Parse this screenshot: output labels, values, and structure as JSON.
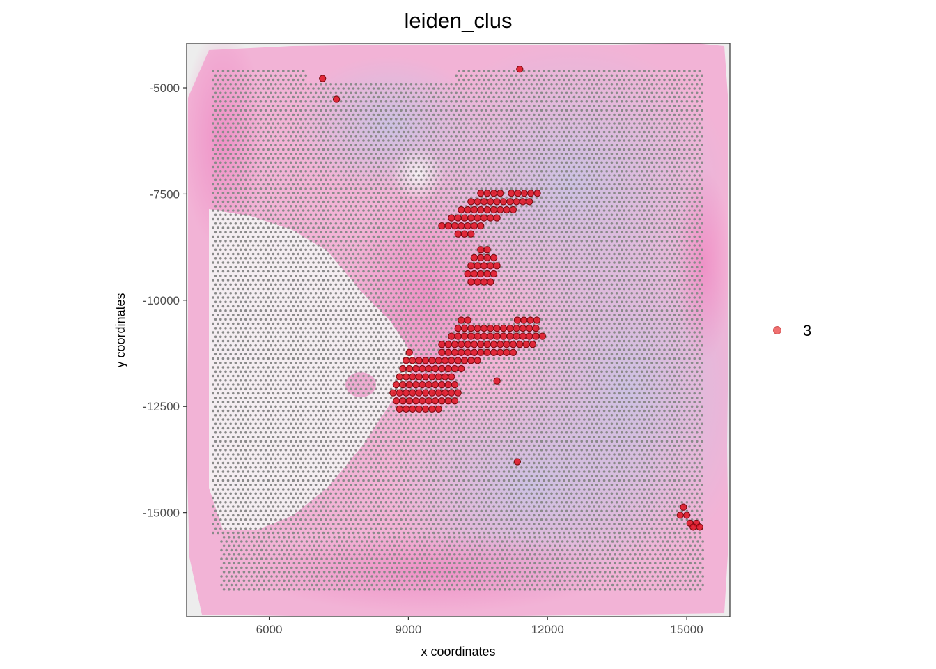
{
  "chart_data": {
    "type": "scatter",
    "title": "leiden_clus",
    "xlabel": "x coordinates",
    "ylabel": "y coordinates",
    "xlim": [
      4220,
      15930
    ],
    "ylim": [
      -17450,
      -3950
    ],
    "x_ticks": [
      6000,
      9000,
      12000,
      15000
    ],
    "y_ticks": [
      -5000,
      -7500,
      -10000,
      -12500,
      -15000
    ],
    "y_tick_labels": [
      "-5000",
      "-7500",
      "-10000",
      "-12500",
      "-15000"
    ],
    "x_tick_labels": [
      "6000",
      "9000",
      "12000",
      "15000"
    ],
    "grid": false,
    "background": "tissue image (H&E stained section)",
    "colors": {
      "highlight": "#e01020",
      "highlight_edge": "#7a0a10",
      "legend_point": "#f07070",
      "background_spot": "#8a8a8a",
      "tissue_pink": "#f2a6cf",
      "tissue_lilac": "#cbbfe0"
    },
    "legend": {
      "position": "right",
      "entries": [
        {
          "label": "3",
          "color": "#f07070"
        }
      ]
    },
    "series": [
      {
        "name": "3",
        "role": "highlighted cluster",
        "points": [
          [
            7150,
            -4780
          ],
          [
            11400,
            -4560
          ],
          [
            7450,
            -5270
          ],
          [
            11220,
            -7480
          ],
          [
            11360,
            -7480
          ],
          [
            11500,
            -7480
          ],
          [
            11640,
            -7480
          ],
          [
            11780,
            -7480
          ],
          [
            10560,
            -7480
          ],
          [
            10700,
            -7480
          ],
          [
            10840,
            -7480
          ],
          [
            10980,
            -7480
          ],
          [
            10350,
            -7680
          ],
          [
            10490,
            -7680
          ],
          [
            10630,
            -7680
          ],
          [
            10770,
            -7680
          ],
          [
            10910,
            -7680
          ],
          [
            11050,
            -7680
          ],
          [
            11190,
            -7680
          ],
          [
            11330,
            -7680
          ],
          [
            11470,
            -7680
          ],
          [
            11610,
            -7680
          ],
          [
            10140,
            -7870
          ],
          [
            10280,
            -7870
          ],
          [
            10420,
            -7870
          ],
          [
            10560,
            -7870
          ],
          [
            10700,
            -7870
          ],
          [
            10840,
            -7870
          ],
          [
            10980,
            -7870
          ],
          [
            11120,
            -7870
          ],
          [
            11260,
            -7870
          ],
          [
            9930,
            -8060
          ],
          [
            10070,
            -8060
          ],
          [
            10210,
            -8060
          ],
          [
            10350,
            -8060
          ],
          [
            10490,
            -8060
          ],
          [
            10630,
            -8060
          ],
          [
            10770,
            -8060
          ],
          [
            10910,
            -8060
          ],
          [
            9720,
            -8250
          ],
          [
            9860,
            -8250
          ],
          [
            10000,
            -8250
          ],
          [
            10140,
            -8250
          ],
          [
            10280,
            -8250
          ],
          [
            10420,
            -8250
          ],
          [
            10560,
            -8250
          ],
          [
            10070,
            -8440
          ],
          [
            10210,
            -8440
          ],
          [
            10350,
            -8440
          ],
          [
            10560,
            -8810
          ],
          [
            10700,
            -8810
          ],
          [
            10420,
            -9000
          ],
          [
            10560,
            -9000
          ],
          [
            10700,
            -9000
          ],
          [
            10840,
            -9000
          ],
          [
            10350,
            -9190
          ],
          [
            10490,
            -9190
          ],
          [
            10630,
            -9190
          ],
          [
            10770,
            -9190
          ],
          [
            10910,
            -9190
          ],
          [
            10280,
            -9380
          ],
          [
            10420,
            -9380
          ],
          [
            10560,
            -9380
          ],
          [
            10700,
            -9380
          ],
          [
            10840,
            -9380
          ],
          [
            10350,
            -9570
          ],
          [
            10490,
            -9570
          ],
          [
            10630,
            -9570
          ],
          [
            10770,
            -9570
          ],
          [
            11350,
            -10470
          ],
          [
            11490,
            -10470
          ],
          [
            11630,
            -10470
          ],
          [
            11770,
            -10470
          ],
          [
            10140,
            -10470
          ],
          [
            10280,
            -10470
          ],
          [
            10070,
            -10660
          ],
          [
            10210,
            -10660
          ],
          [
            10350,
            -10660
          ],
          [
            10490,
            -10660
          ],
          [
            10630,
            -10660
          ],
          [
            10770,
            -10660
          ],
          [
            10910,
            -10660
          ],
          [
            11050,
            -10660
          ],
          [
            11190,
            -10660
          ],
          [
            11330,
            -10660
          ],
          [
            11470,
            -10660
          ],
          [
            11610,
            -10660
          ],
          [
            11750,
            -10660
          ],
          [
            9930,
            -10850
          ],
          [
            10070,
            -10850
          ],
          [
            10210,
            -10850
          ],
          [
            10350,
            -10850
          ],
          [
            10490,
            -10850
          ],
          [
            10630,
            -10850
          ],
          [
            10770,
            -10850
          ],
          [
            10910,
            -10850
          ],
          [
            11050,
            -10850
          ],
          [
            11190,
            -10850
          ],
          [
            11330,
            -10850
          ],
          [
            11470,
            -10850
          ],
          [
            11610,
            -10850
          ],
          [
            11750,
            -10850
          ],
          [
            11890,
            -10850
          ],
          [
            9720,
            -11040
          ],
          [
            9860,
            -11040
          ],
          [
            10000,
            -11040
          ],
          [
            10140,
            -11040
          ],
          [
            10280,
            -11040
          ],
          [
            10420,
            -11040
          ],
          [
            10560,
            -11040
          ],
          [
            10700,
            -11040
          ],
          [
            10840,
            -11040
          ],
          [
            10980,
            -11040
          ],
          [
            11120,
            -11040
          ],
          [
            11260,
            -11040
          ],
          [
            11400,
            -11040
          ],
          [
            11540,
            -11040
          ],
          [
            11680,
            -11040
          ],
          [
            9020,
            -11230
          ],
          [
            9720,
            -11230
          ],
          [
            9860,
            -11230
          ],
          [
            10000,
            -11230
          ],
          [
            10140,
            -11230
          ],
          [
            10280,
            -11230
          ],
          [
            10420,
            -11230
          ],
          [
            10560,
            -11230
          ],
          [
            10700,
            -11230
          ],
          [
            10840,
            -11230
          ],
          [
            10980,
            -11230
          ],
          [
            11120,
            -11230
          ],
          [
            11260,
            -11230
          ],
          [
            8950,
            -11420
          ],
          [
            9090,
            -11420
          ],
          [
            9230,
            -11420
          ],
          [
            9370,
            -11420
          ],
          [
            9510,
            -11420
          ],
          [
            9650,
            -11420
          ],
          [
            9790,
            -11420
          ],
          [
            9930,
            -11420
          ],
          [
            10070,
            -11420
          ],
          [
            10210,
            -11420
          ],
          [
            10350,
            -11420
          ],
          [
            10490,
            -11420
          ],
          [
            8880,
            -11610
          ],
          [
            9020,
            -11610
          ],
          [
            9160,
            -11610
          ],
          [
            9300,
            -11610
          ],
          [
            9440,
            -11610
          ],
          [
            9580,
            -11610
          ],
          [
            9720,
            -11610
          ],
          [
            9860,
            -11610
          ],
          [
            10000,
            -11610
          ],
          [
            10140,
            -11610
          ],
          [
            8810,
            -11800
          ],
          [
            8950,
            -11800
          ],
          [
            9090,
            -11800
          ],
          [
            9230,
            -11800
          ],
          [
            9370,
            -11800
          ],
          [
            9510,
            -11800
          ],
          [
            9650,
            -11800
          ],
          [
            9790,
            -11800
          ],
          [
            9930,
            -11800
          ],
          [
            10910,
            -11900
          ],
          [
            8740,
            -11990
          ],
          [
            8880,
            -11990
          ],
          [
            9020,
            -11990
          ],
          [
            9160,
            -11990
          ],
          [
            9300,
            -11990
          ],
          [
            9440,
            -11990
          ],
          [
            9580,
            -11990
          ],
          [
            9720,
            -11990
          ],
          [
            9860,
            -11990
          ],
          [
            10000,
            -11990
          ],
          [
            8670,
            -12180
          ],
          [
            8810,
            -12180
          ],
          [
            8950,
            -12180
          ],
          [
            9090,
            -12180
          ],
          [
            9230,
            -12180
          ],
          [
            9370,
            -12180
          ],
          [
            9510,
            -12180
          ],
          [
            9650,
            -12180
          ],
          [
            9790,
            -12180
          ],
          [
            9930,
            -12180
          ],
          [
            10070,
            -12180
          ],
          [
            8740,
            -12370
          ],
          [
            8880,
            -12370
          ],
          [
            9020,
            -12370
          ],
          [
            9160,
            -12370
          ],
          [
            9300,
            -12370
          ],
          [
            9440,
            -12370
          ],
          [
            9580,
            -12370
          ],
          [
            9720,
            -12370
          ],
          [
            9860,
            -12370
          ],
          [
            10000,
            -12370
          ],
          [
            8810,
            -12560
          ],
          [
            8950,
            -12560
          ],
          [
            9090,
            -12560
          ],
          [
            9230,
            -12560
          ],
          [
            9370,
            -12560
          ],
          [
            9510,
            -12560
          ],
          [
            9650,
            -12560
          ],
          [
            11350,
            -13800
          ],
          [
            14930,
            -14870
          ],
          [
            14860,
            -15060
          ],
          [
            15000,
            -15060
          ],
          [
            15070,
            -15250
          ],
          [
            15210,
            -15250
          ],
          [
            15140,
            -15340
          ],
          [
            15280,
            -15340
          ]
        ]
      }
    ]
  }
}
